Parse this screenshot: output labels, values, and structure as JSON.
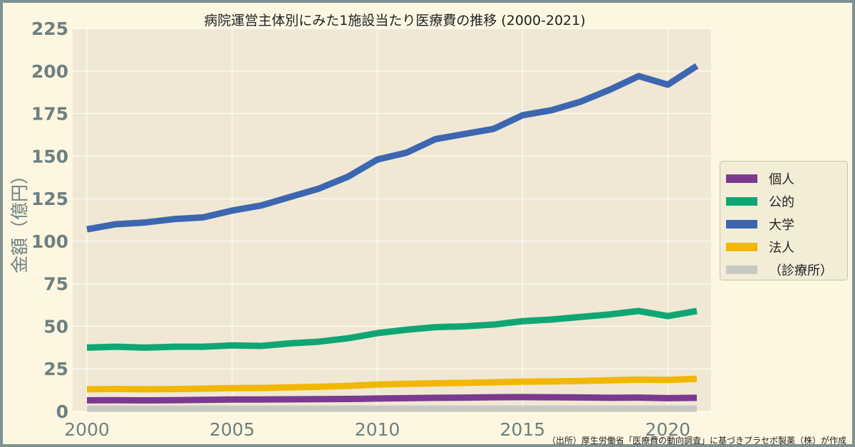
{
  "chart_data": {
    "type": "line",
    "title": "病院運営主体別にみた1施設当たり医療費の推移 (2000-2021)",
    "ylabel": "金額（億円）",
    "xlabel": "",
    "xlim": [
      2000,
      2021
    ],
    "ylim": [
      0,
      225
    ],
    "x_ticks": [
      2000,
      2005,
      2010,
      2015,
      2020
    ],
    "y_ticks": [
      0,
      25,
      50,
      75,
      100,
      125,
      150,
      175,
      200,
      225
    ],
    "grid": true,
    "legend_position": "right",
    "x": [
      2000,
      2001,
      2002,
      2003,
      2004,
      2005,
      2006,
      2007,
      2008,
      2009,
      2010,
      2011,
      2012,
      2013,
      2014,
      2015,
      2016,
      2017,
      2018,
      2019,
      2020,
      2021
    ],
    "series": [
      {
        "name": "個人",
        "color": "#7b3a8f",
        "values": [
          6.5,
          6.6,
          6.5,
          6.6,
          6.8,
          7.0,
          7.0,
          7.1,
          7.2,
          7.3,
          7.6,
          7.8,
          8.0,
          8.1,
          8.3,
          8.4,
          8.3,
          8.2,
          8.0,
          8.1,
          7.8,
          8.0
        ]
      },
      {
        "name": "公的",
        "color": "#10a674",
        "values": [
          37.5,
          38,
          37.5,
          38,
          38,
          38.8,
          38.5,
          40,
          41,
          43,
          46,
          48,
          49.5,
          50,
          51,
          53,
          54,
          55.5,
          57,
          59,
          56,
          59
        ]
      },
      {
        "name": "大学",
        "color": "#3c66b0",
        "values": [
          107,
          110,
          111,
          113,
          114,
          118,
          121,
          126,
          131,
          138,
          148,
          152,
          160,
          163,
          166,
          174,
          177,
          182,
          189,
          197,
          192,
          203
        ]
      },
      {
        "name": "法人",
        "color": "#f2b700",
        "values": [
          13,
          13.2,
          13,
          13.1,
          13.4,
          13.7,
          13.8,
          14.1,
          14.5,
          15,
          15.8,
          16.2,
          16.5,
          16.8,
          17.1,
          17.5,
          17.6,
          17.9,
          18.3,
          18.7,
          18.5,
          19.2
        ]
      },
      {
        "name": "（診療所）",
        "color": "#c9c9c4",
        "values": [
          1.6,
          1.6,
          1.6,
          1.6,
          1.6,
          1.6,
          1.6,
          1.6,
          1.6,
          1.6,
          1.6,
          1.6,
          1.6,
          1.6,
          1.6,
          1.6,
          1.6,
          1.6,
          1.6,
          1.6,
          1.6,
          1.6
        ]
      }
    ]
  },
  "source_note": "（出所）厚生労働省「医療費の動向調査」に基づきプラセボ製薬（株）が作成"
}
